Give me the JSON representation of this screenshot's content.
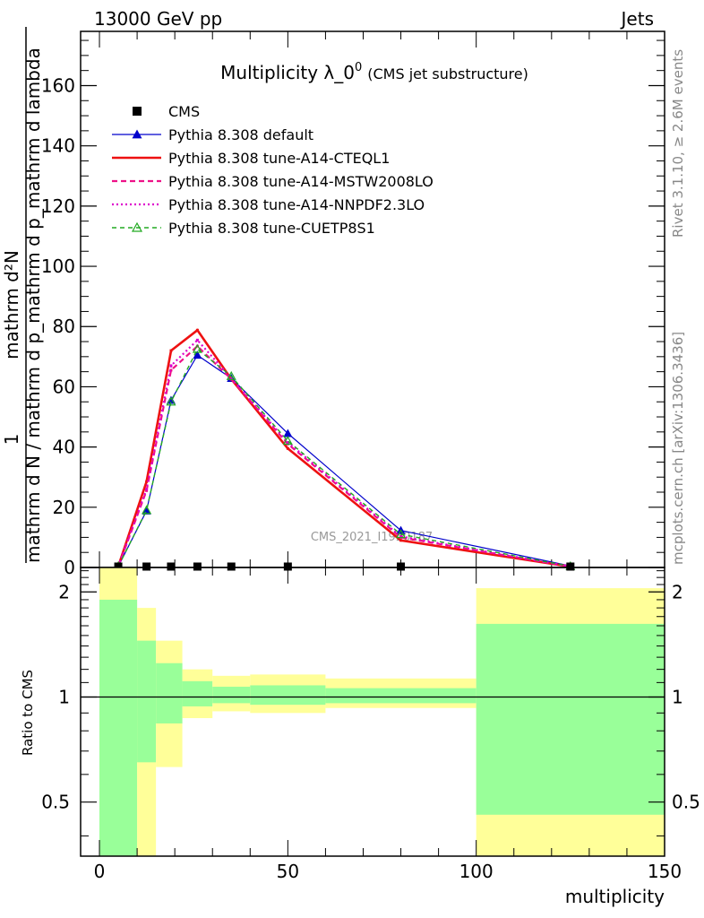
{
  "header": {
    "left": "13000 GeV pp",
    "right": "Jets",
    "side_top": "Rivet 3.1.10, ≥ 2.6M events",
    "side_bottom": "mcplots.cern.ch [arXiv:1306.3436]",
    "watermark": "CMS_2021_I1920187"
  },
  "chart_data": [
    {
      "type": "line",
      "title_main": "Multiplicity λ_0",
      "title_sup": "0",
      "title_extra": "(CMS jet substructure)",
      "ylabel_top": "1",
      "ylabel_bottom": "mathrm d N / mathrm d p_mathrm d p_mathrm d lambda",
      "ylabel_num": "mathrm d²N",
      "ylim": [
        0,
        178
      ],
      "xlim": [
        -5,
        150
      ],
      "ytick_values": [
        0,
        20,
        40,
        60,
        80,
        100,
        120,
        140,
        160
      ],
      "ytick_labels": [
        "0",
        "20",
        "40",
        "60",
        "80",
        "100",
        "120",
        "140",
        "160"
      ],
      "legend_position": "top-left",
      "data_markers": {
        "name": "CMS",
        "x": [
          5,
          12.5,
          19,
          26,
          35,
          50,
          80,
          125
        ],
        "y": [
          0.3,
          0.3,
          0.3,
          0.3,
          0.3,
          0.3,
          0.3,
          0.3
        ]
      },
      "series": [
        {
          "name": "Pythia 8.308 default",
          "color": "#0000cc",
          "style": "solid-triangle",
          "x": [
            5,
            12.5,
            19,
            26,
            35,
            50,
            80,
            125
          ],
          "y": [
            0.4,
            18.8,
            55.5,
            70.5,
            62.8,
            44.5,
            12.3,
            0.5
          ]
        },
        {
          "name": "Pythia 8.308 tune-A14-CTEQL1",
          "color": "#ee1111",
          "style": "solid-thick",
          "x": [
            5,
            12.5,
            19,
            26,
            35,
            50,
            80,
            125
          ],
          "y": [
            0.4,
            28.5,
            72,
            78.8,
            62.5,
            39.5,
            9,
            0.3
          ]
        },
        {
          "name": "Pythia 8.308 tune-A14-MSTW2008LO",
          "color": "#ee1188",
          "style": "dashed",
          "x": [
            5,
            12.5,
            19,
            26,
            35,
            50,
            80,
            125
          ],
          "y": [
            0.4,
            25.5,
            65.5,
            73.5,
            62.5,
            41,
            10,
            0.3
          ]
        },
        {
          "name": "Pythia 8.308 tune-A14-NNPDF2.3LO",
          "color": "#dd00cc",
          "style": "dotted",
          "x": [
            5,
            12.5,
            19,
            26,
            35,
            50,
            80,
            125
          ],
          "y": [
            0.4,
            26,
            67,
            75.5,
            62.8,
            41.5,
            10.3,
            0.3
          ]
        },
        {
          "name": "Pythia 8.308 tune-CUETP8S1",
          "color": "#22aa22",
          "style": "dashed-open-triangle",
          "x": [
            5,
            12.5,
            19,
            26,
            35,
            50,
            80,
            125
          ],
          "y": [
            0.4,
            19,
            55,
            72.5,
            63.5,
            42,
            11,
            0.4
          ]
        }
      ]
    },
    {
      "type": "area",
      "ylabel": "Ratio to CMS",
      "xlabel": "multiplicity",
      "ylim": [
        0.35,
        2.35
      ],
      "xlim": [
        -5,
        150
      ],
      "log_y": true,
      "ytick_values": [
        0.5,
        1,
        2
      ],
      "ytick_labels": [
        "0.5",
        "1",
        "2"
      ],
      "xtick_values": [
        0,
        50,
        100,
        150
      ],
      "xtick_labels": [
        "0",
        "50",
        "100",
        "150"
      ],
      "reference_line": 1,
      "bands": [
        {
          "x0": 0,
          "x1": 10,
          "yellow": [
            0.35,
            2.35
          ],
          "green": [
            0.35,
            1.9
          ]
        },
        {
          "x0": 10,
          "x1": 15,
          "yellow": [
            0.35,
            1.8
          ],
          "green": [
            0.65,
            1.45
          ]
        },
        {
          "x0": 15,
          "x1": 22,
          "yellow": [
            0.63,
            1.45
          ],
          "green": [
            0.84,
            1.25
          ]
        },
        {
          "x0": 22,
          "x1": 30,
          "yellow": [
            0.87,
            1.2
          ],
          "green": [
            0.94,
            1.11
          ]
        },
        {
          "x0": 30,
          "x1": 40,
          "yellow": [
            0.91,
            1.15
          ],
          "green": [
            0.96,
            1.07
          ]
        },
        {
          "x0": 40,
          "x1": 60,
          "yellow": [
            0.9,
            1.16
          ],
          "green": [
            0.95,
            1.08
          ]
        },
        {
          "x0": 60,
          "x1": 100,
          "yellow": [
            0.93,
            1.13
          ],
          "green": [
            0.96,
            1.06
          ]
        },
        {
          "x0": 100,
          "x1": 150,
          "yellow": [
            0.35,
            2.05
          ],
          "green": [
            0.46,
            1.62
          ]
        }
      ]
    }
  ]
}
